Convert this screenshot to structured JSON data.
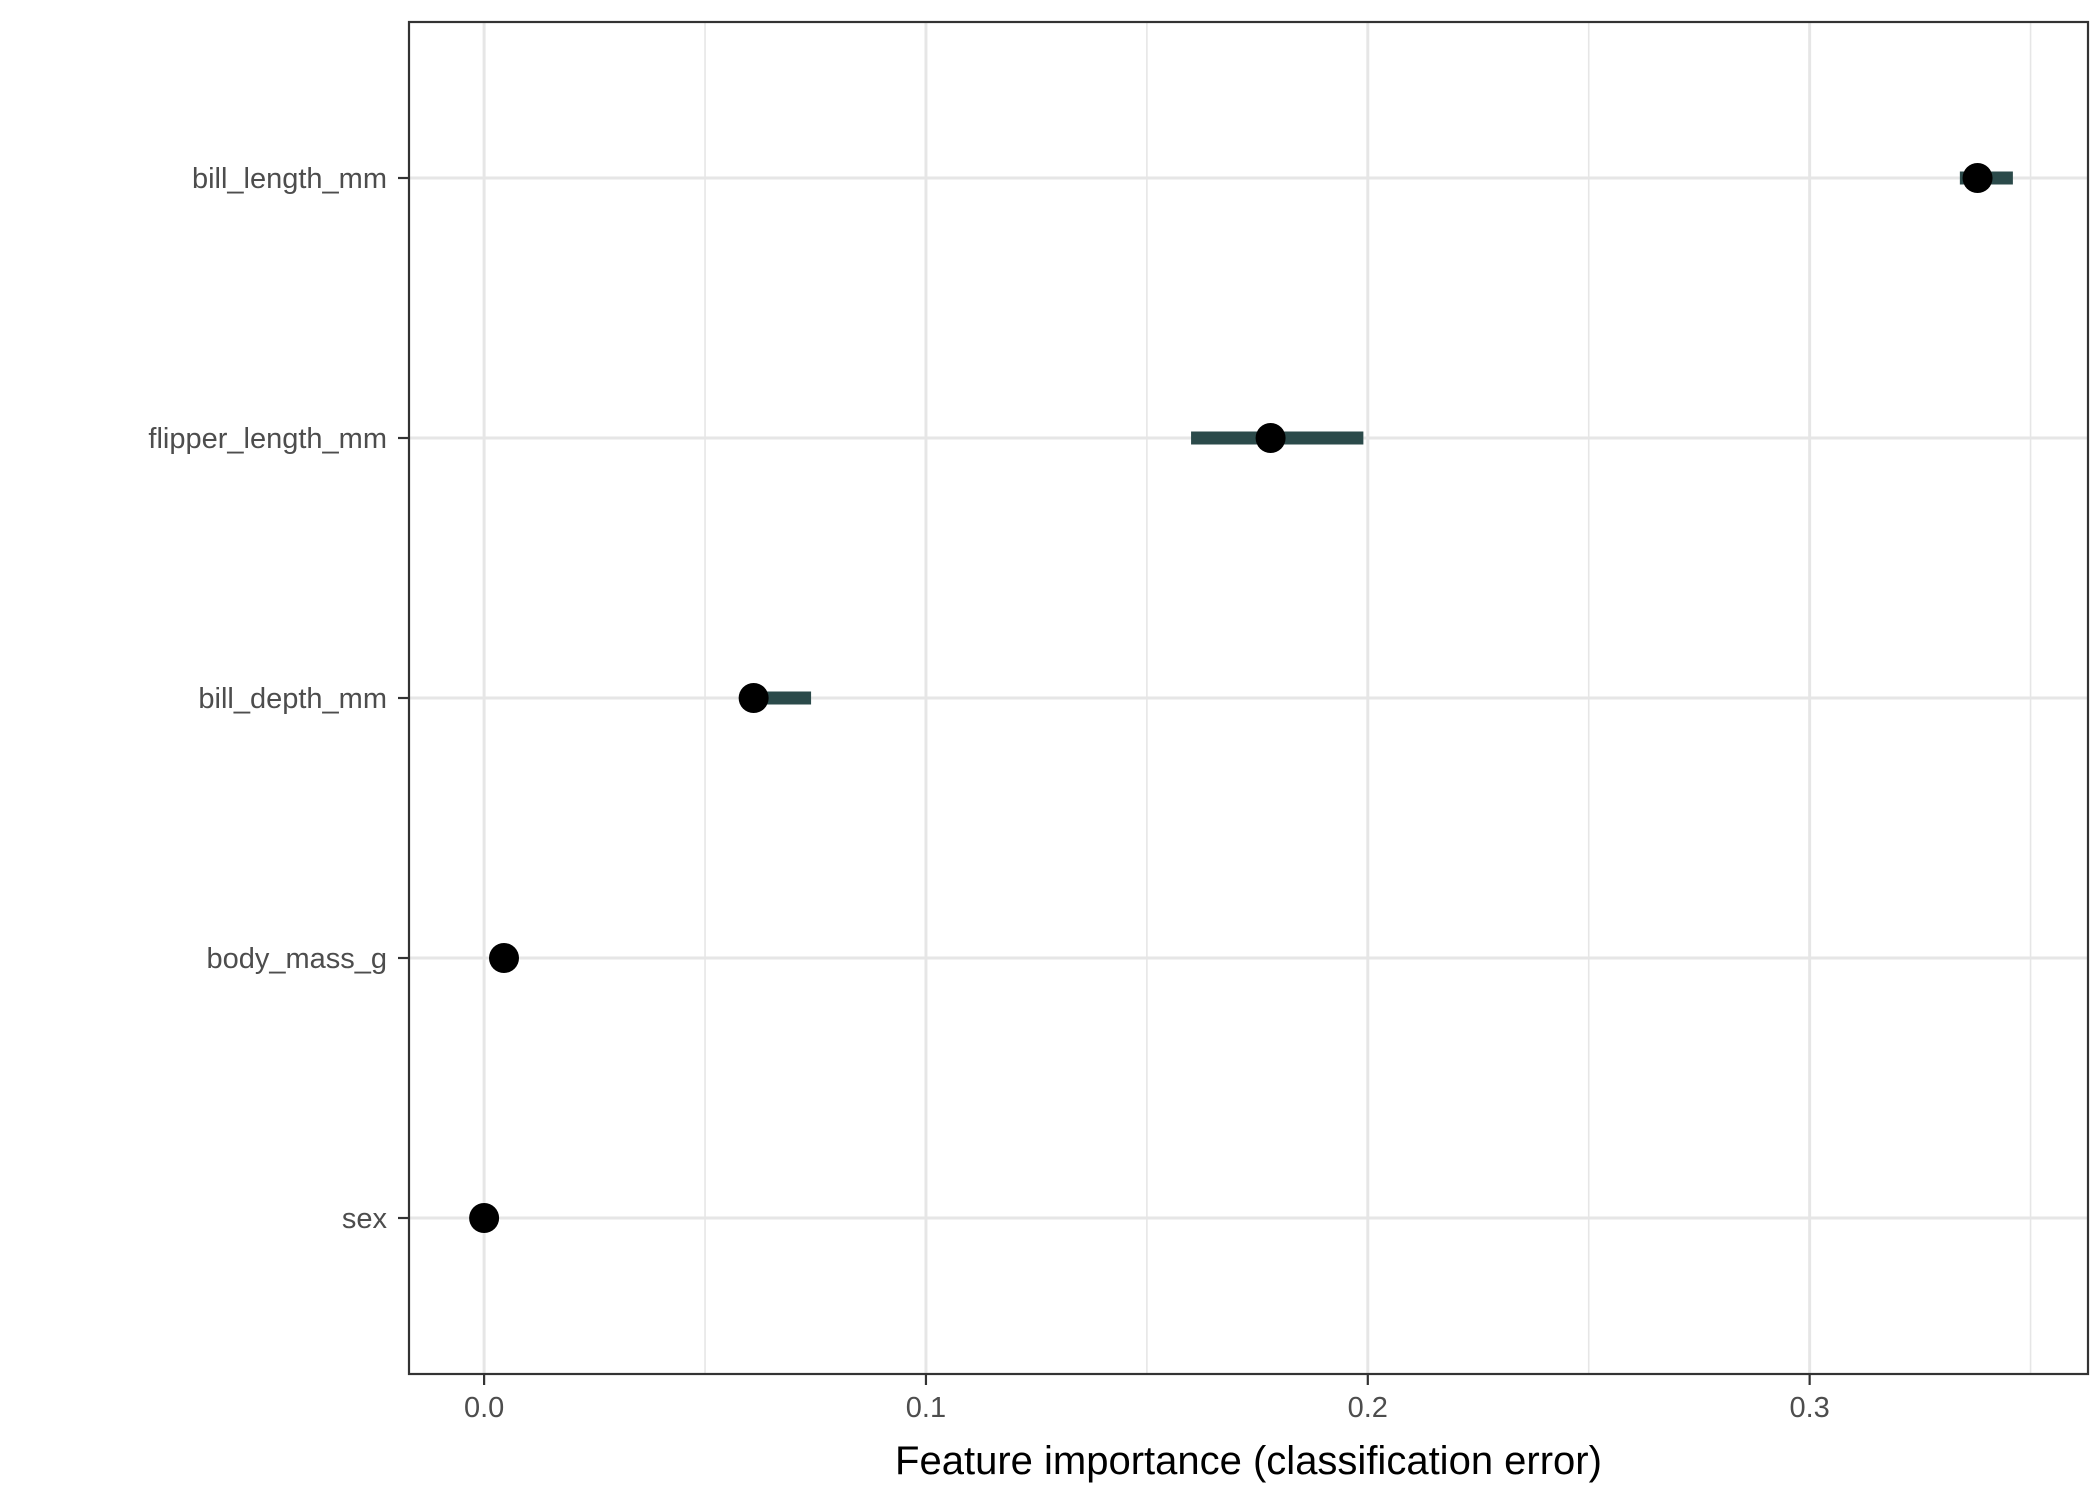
{
  "chart_data": {
    "type": "scatter",
    "title": "",
    "xlabel": "Feature importance (classification error)",
    "ylabel": "",
    "xlim": [
      -0.017,
      0.363
    ],
    "x_ticks": [
      0.0,
      0.1,
      0.2,
      0.3
    ],
    "x_tick_labels": [
      "0.0",
      "0.1",
      "0.2",
      "0.3"
    ],
    "x_minor_ticks": [
      0.05,
      0.15,
      0.25,
      0.35
    ],
    "categories": [
      "bill_length_mm",
      "flipper_length_mm",
      "bill_depth_mm",
      "body_mass_g",
      "sex"
    ],
    "values": [
      0.338,
      0.178,
      0.061,
      0.0045,
      0.0
    ],
    "intervals": [
      [
        0.334,
        0.346
      ],
      [
        0.16,
        0.199
      ],
      [
        0.061,
        0.074
      ],
      [
        0.0045,
        0.0045
      ],
      [
        0.0,
        0.0
      ]
    ],
    "grid": true,
    "colors": {
      "point": "#000000",
      "interval": "#2b4a4a",
      "grid": "#e6e6e6",
      "panel_border": "#333333",
      "tick_label": "#4d4d4d"
    }
  }
}
